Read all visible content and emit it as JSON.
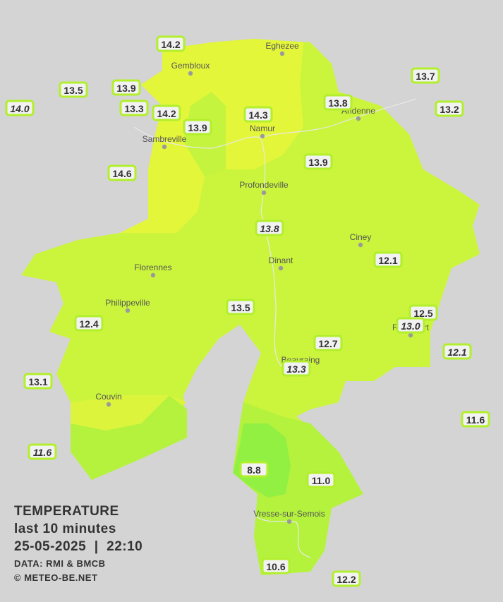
{
  "legend": {
    "title": "TEMPERATURE",
    "period": "last 10 minutes",
    "datetime": "25-05-2025  |  22:10",
    "source": "DATA: RMI & BMCB",
    "copyright": "© METEO-BE.NET"
  },
  "cities": [
    "Eghezee",
    "Gembloux",
    "Andenne",
    "Namur",
    "Sambreville",
    "Profondeville",
    "Ciney",
    "Dinant",
    "Florennes",
    "Philippeville",
    "Rochefort",
    "Beauraing",
    "Couvin",
    "Vresse-sur-Semois"
  ],
  "stations": [
    {
      "label": "14.2"
    },
    {
      "label": "13.5"
    },
    {
      "label": "14.0",
      "italic": true
    },
    {
      "label": "13.9"
    },
    {
      "label": "13.3"
    },
    {
      "label": "14.2"
    },
    {
      "label": "13.9"
    },
    {
      "label": "14.3"
    },
    {
      "label": "13.8"
    },
    {
      "label": "13.7"
    },
    {
      "label": "13.2"
    },
    {
      "label": "14.6"
    },
    {
      "label": "13.9"
    },
    {
      "label": "13.8",
      "italic": true
    },
    {
      "label": "12.1"
    },
    {
      "label": "13.5"
    },
    {
      "label": "12.5"
    },
    {
      "label": "13.0",
      "italic": true
    },
    {
      "label": "12.1",
      "italic": true
    },
    {
      "label": "12.4"
    },
    {
      "label": "12.7"
    },
    {
      "label": "13.3",
      "italic": true
    },
    {
      "label": "13.1"
    },
    {
      "label": "11.6"
    },
    {
      "label": "11.6",
      "italic": true
    },
    {
      "label": "8.8"
    },
    {
      "label": "11.0"
    },
    {
      "label": "10.6"
    },
    {
      "label": "12.2"
    }
  ]
}
